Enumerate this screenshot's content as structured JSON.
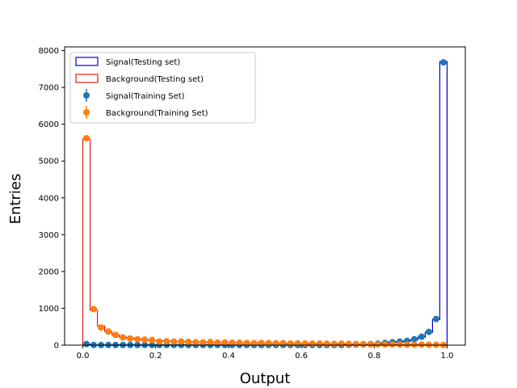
{
  "chart_data": {
    "type": "histogram",
    "xlabel": "Output",
    "ylabel": "Entries",
    "xlim": [
      -0.05,
      1.05
    ],
    "ylim": [
      0,
      8100
    ],
    "xticks": [
      "0.0",
      "0.2",
      "0.4",
      "0.6",
      "0.8",
      "1.0"
    ],
    "xtick_values": [
      0.0,
      0.2,
      0.4,
      0.6,
      0.8,
      1.0
    ],
    "yticks": [
      "0",
      "1000",
      "2000",
      "3000",
      "4000",
      "5000",
      "6000",
      "7000",
      "8000"
    ],
    "ytick_values": [
      0,
      1000,
      2000,
      3000,
      4000,
      5000,
      6000,
      7000,
      8000
    ],
    "legend_position": "upper-left",
    "bins": {
      "start": 0.0,
      "end": 1.0,
      "count": 50
    },
    "series": [
      {
        "name": "Signal(Testing set)",
        "style": "step",
        "color": "#0000cc",
        "values": [
          28,
          5,
          5,
          5,
          5,
          5,
          5,
          5,
          5,
          5,
          5,
          5,
          5,
          5,
          5,
          5,
          5,
          5,
          5,
          5,
          5,
          5,
          5,
          5,
          5,
          5,
          5,
          5,
          5,
          5,
          5,
          5,
          5,
          5,
          5,
          5,
          10,
          15,
          20,
          30,
          40,
          60,
          80,
          90,
          110,
          150,
          220,
          350,
          700,
          7700
        ]
      },
      {
        "name": "Background(Testing set)",
        "style": "step",
        "color": "#e41a1c",
        "values": [
          5600,
          950,
          520,
          370,
          280,
          220,
          190,
          170,
          150,
          130,
          120,
          110,
          100,
          95,
          90,
          85,
          80,
          75,
          72,
          70,
          68,
          65,
          62,
          60,
          58,
          56,
          54,
          52,
          50,
          48,
          46,
          44,
          42,
          40,
          38,
          36,
          34,
          32,
          30,
          28,
          26,
          24,
          22,
          20,
          18,
          16,
          14,
          12,
          10,
          5
        ]
      },
      {
        "name": "Signal(Training Set)",
        "style": "points",
        "color": "#1f77b4",
        "values": [
          30,
          5,
          5,
          5,
          5,
          5,
          5,
          5,
          5,
          5,
          5,
          5,
          5,
          5,
          5,
          5,
          5,
          5,
          5,
          5,
          5,
          5,
          5,
          5,
          5,
          5,
          5,
          5,
          5,
          5,
          5,
          5,
          5,
          5,
          5,
          5,
          10,
          15,
          20,
          30,
          40,
          60,
          80,
          95,
          115,
          160,
          230,
          360,
          710,
          7680
        ]
      },
      {
        "name": "Background(Training Set)",
        "style": "points",
        "color": "#ff7f0e",
        "values": [
          5620,
          980,
          480,
          370,
          280,
          210,
          180,
          160,
          150,
          140,
          100,
          105,
          95,
          100,
          90,
          80,
          75,
          85,
          70,
          75,
          65,
          65,
          60,
          55,
          60,
          55,
          50,
          55,
          45,
          50,
          45,
          40,
          45,
          40,
          35,
          40,
          35,
          30,
          30,
          25,
          25,
          20,
          20,
          20,
          15,
          15,
          15,
          10,
          10,
          5
        ]
      }
    ]
  }
}
